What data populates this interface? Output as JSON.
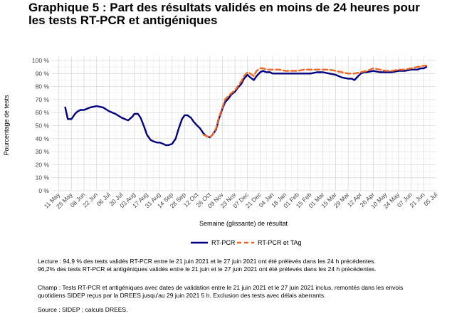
{
  "title_lines": [
    "Graphique 5 : Part des résultats validés en moins de 24 heures pour",
    "les tests RT-PCR et antigéniques"
  ],
  "notes": {
    "lecture": [
      "Lecture : 94,9 % des tests validés RT-PCR entre le 21 juin 2021 et le 27 juin 2021 ont été prélevés dans les 24 h précédentes.",
      "96,2% des tests RT-PCR et antigéniques validés entre le 21 juin et le 27 juin 2021 ont été prélevés dans les 24 h précédentes."
    ],
    "champ": [
      "Champ : Tests RT-PCR et antigéniques avec dates de validation entre le 21 juin 2021 et le 27 juin 2021 inclus, remontés dans les envois",
      "quotidiens SIDEP reçus par la DREES jusqu'au 29 juin 2021 5 h. Exclusion des tests avec délais aberrants."
    ],
    "source": "Source : SIDEP ; calculs DREES."
  },
  "chart_data": {
    "type": "line",
    "xlabel": "Semaine (glissante) de résultat",
    "ylabel": "Pourcentage de tests",
    "ylim": [
      0,
      100
    ],
    "y_ticks": [
      0,
      10,
      20,
      30,
      40,
      50,
      60,
      70,
      80,
      90,
      100
    ],
    "y_tick_labels": [
      "0 %",
      "10 %",
      "20 %",
      "30 %",
      "40 %",
      "50 %",
      "60 %",
      "70 %",
      "80 %",
      "90 %",
      "100 %"
    ],
    "x_tick_labels": [
      "11 May",
      "25 May",
      "08 Jun",
      "22 Jun",
      "06 Jul",
      "20 Jul",
      "03 Aug",
      "17 Aug",
      "31 Aug",
      "14 Sep",
      "28 Sep",
      "12 Oct",
      "26 Oct",
      "09 Nov",
      "23 Nov",
      "07 Dec",
      "21 Dec",
      "04 Jan",
      "18 Jan",
      "01 Feb",
      "15 Feb",
      "01 Mar",
      "15 Mar",
      "29 Mar",
      "12 Apr",
      "26 Apr",
      "10 May",
      "24 May",
      "07 Jun",
      "21 Jun",
      "05 Jul"
    ],
    "legend_position": "bottom",
    "grid": true,
    "colors": {
      "rtpcr": "#000080",
      "rtpcr_tag": "#f26522"
    },
    "series": [
      {
        "name": "RT-PCR",
        "style": "solid",
        "x": [
          "2020-05-18",
          "2020-05-21",
          "2020-05-25",
          "2020-05-29",
          "2020-06-01",
          "2020-06-04",
          "2020-06-08",
          "2020-06-15",
          "2020-06-22",
          "2020-06-29",
          "2020-07-06",
          "2020-07-13",
          "2020-07-20",
          "2020-07-27",
          "2020-08-01",
          "2020-08-03",
          "2020-08-07",
          "2020-08-10",
          "2020-08-14",
          "2020-08-17",
          "2020-08-21",
          "2020-08-24",
          "2020-08-28",
          "2020-08-31",
          "2020-09-04",
          "2020-09-07",
          "2020-09-10",
          "2020-09-14",
          "2020-09-18",
          "2020-09-21",
          "2020-09-25",
          "2020-09-28",
          "2020-10-01",
          "2020-10-05",
          "2020-10-08",
          "2020-10-12",
          "2020-10-15",
          "2020-10-19",
          "2020-10-22",
          "2020-10-26",
          "2020-10-29",
          "2020-11-02",
          "2020-11-05",
          "2020-11-09",
          "2020-11-12",
          "2020-11-16",
          "2020-11-19",
          "2020-11-23",
          "2020-11-26",
          "2020-11-30",
          "2020-12-03",
          "2020-12-07",
          "2020-12-10",
          "2020-12-14",
          "2020-12-17",
          "2020-12-21",
          "2020-12-24",
          "2020-12-28",
          "2021-01-01",
          "2021-01-04",
          "2021-01-11",
          "2021-01-18",
          "2021-01-25",
          "2021-02-01",
          "2021-02-08",
          "2021-02-15",
          "2021-02-22",
          "2021-03-01",
          "2021-03-08",
          "2021-03-15",
          "2021-03-22",
          "2021-03-29",
          "2021-04-02",
          "2021-04-05",
          "2021-04-09",
          "2021-04-12",
          "2021-04-16",
          "2021-04-19",
          "2021-04-26",
          "2021-05-03",
          "2021-05-10",
          "2021-05-17",
          "2021-05-24",
          "2021-05-31",
          "2021-06-07",
          "2021-06-14",
          "2021-06-18",
          "2021-06-21",
          "2021-06-24"
        ],
        "y": [
          64,
          55,
          55,
          59,
          61,
          62,
          62,
          64,
          65,
          64,
          61,
          59,
          56,
          54,
          57,
          59,
          59,
          56,
          49,
          43,
          39,
          38,
          37,
          37,
          36,
          35,
          35,
          36,
          40,
          47,
          55,
          58,
          58,
          56,
          53,
          50,
          48,
          44,
          42,
          41,
          43,
          47,
          55,
          63,
          68,
          71,
          74,
          76,
          79,
          82,
          86,
          89,
          87,
          85,
          88,
          91,
          92,
          91,
          91,
          90,
          90,
          90,
          90,
          90,
          90,
          90,
          91,
          91,
          90,
          89,
          87,
          86,
          86,
          85,
          88,
          90,
          91,
          91,
          92,
          91,
          91,
          91,
          92,
          92,
          93,
          93,
          94,
          94,
          95
        ]
      },
      {
        "name": "RT-PCR et TAg",
        "style": "dashed",
        "x": [
          "2020-10-19",
          "2020-10-22",
          "2020-10-26",
          "2020-10-29",
          "2020-11-02",
          "2020-11-05",
          "2020-11-09",
          "2020-11-12",
          "2020-11-16",
          "2020-11-19",
          "2020-11-23",
          "2020-11-26",
          "2020-11-30",
          "2020-12-03",
          "2020-12-07",
          "2020-12-10",
          "2020-12-14",
          "2020-12-17",
          "2020-12-21",
          "2020-12-24",
          "2020-12-28",
          "2021-01-01",
          "2021-01-04",
          "2021-01-11",
          "2021-01-18",
          "2021-01-25",
          "2021-02-01",
          "2021-02-08",
          "2021-02-15",
          "2021-02-22",
          "2021-03-01",
          "2021-03-08",
          "2021-03-15",
          "2021-03-22",
          "2021-03-29",
          "2021-04-05",
          "2021-04-12",
          "2021-04-19",
          "2021-04-26",
          "2021-05-03",
          "2021-05-10",
          "2021-05-17",
          "2021-05-24",
          "2021-05-31",
          "2021-06-07",
          "2021-06-14",
          "2021-06-21",
          "2021-06-24"
        ],
        "y": [
          43,
          42,
          41,
          43,
          48,
          56,
          64,
          70,
          73,
          75,
          77,
          80,
          84,
          88,
          91,
          90,
          88,
          92,
          94,
          94,
          93,
          93,
          93,
          93,
          92,
          92,
          92,
          93,
          93,
          93,
          93,
          93,
          92,
          91,
          90,
          90,
          91,
          92,
          94,
          93,
          92,
          92,
          93,
          93,
          94,
          95,
          96,
          96
        ]
      }
    ]
  }
}
